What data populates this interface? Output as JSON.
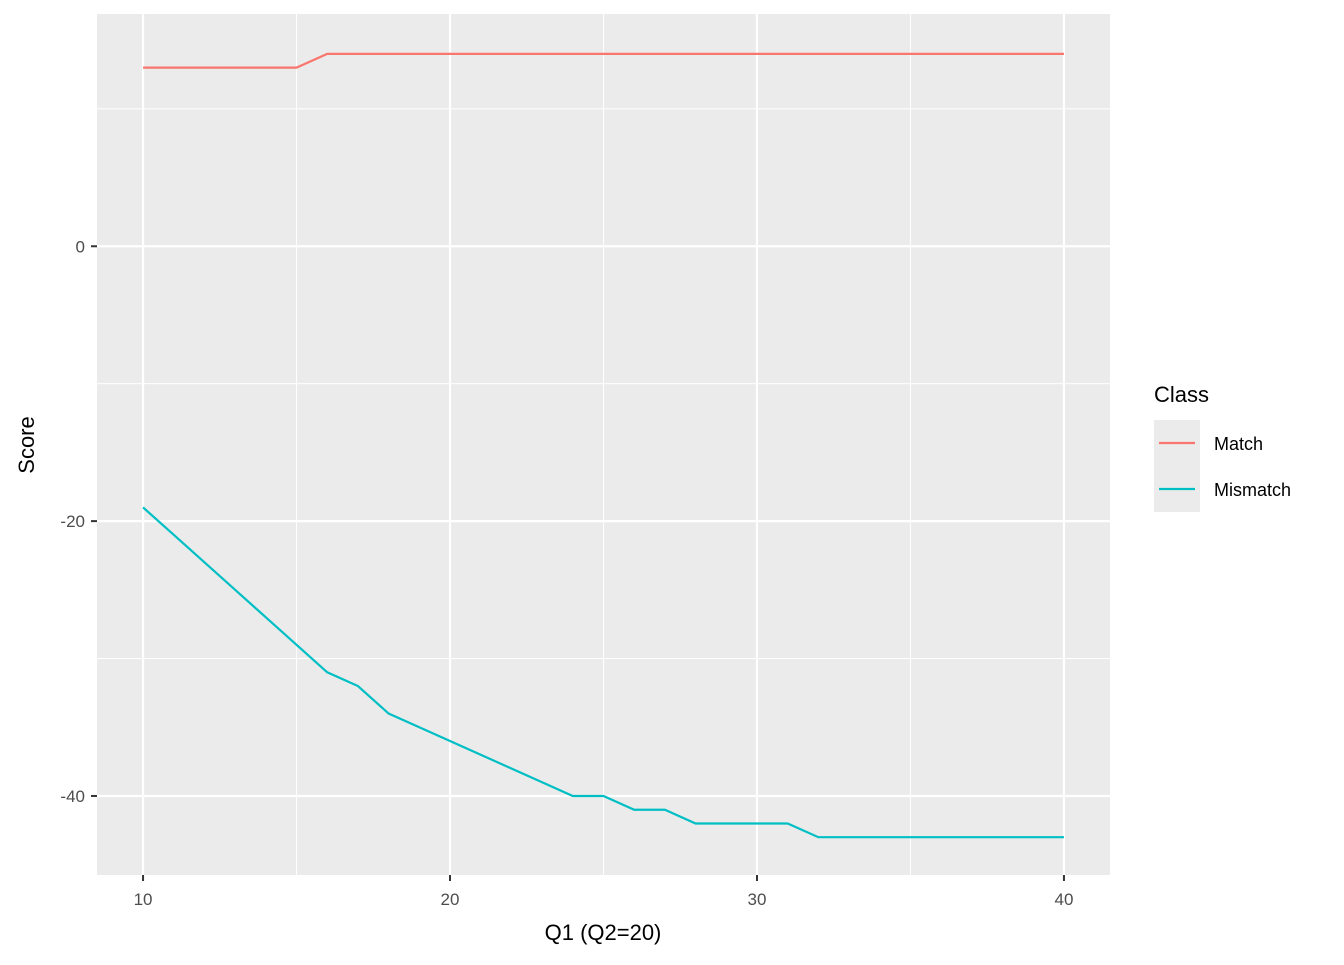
{
  "chart_data": {
    "type": "line",
    "title": "",
    "xlabel": "Q1 (Q2=20)",
    "ylabel": "Score",
    "xlim": [
      8.5,
      41.5
    ],
    "ylim": [
      -45.75,
      16.9
    ],
    "x_ticks": [
      10,
      20,
      30,
      40
    ],
    "y_ticks": [
      0,
      -20,
      -40
    ],
    "grid": true,
    "legend": {
      "title": "Class",
      "position": "right"
    },
    "x": [
      10,
      11,
      12,
      13,
      14,
      15,
      16,
      17,
      18,
      19,
      20,
      21,
      22,
      23,
      24,
      25,
      26,
      27,
      28,
      29,
      30,
      31,
      32,
      33,
      34,
      35,
      36,
      37,
      38,
      39,
      40
    ],
    "series": [
      {
        "name": "Match",
        "color": "#F8766D",
        "values": [
          13,
          13,
          13,
          13,
          13,
          13,
          14,
          14,
          14,
          14,
          14,
          14,
          14,
          14,
          14,
          14,
          14,
          14,
          14,
          14,
          14,
          14,
          14,
          14,
          14,
          14,
          14,
          14,
          14,
          14,
          14
        ]
      },
      {
        "name": "Mismatch",
        "color": "#00BFC4",
        "values": [
          -19,
          -21,
          -23,
          -25,
          -27,
          -29,
          -31,
          -32,
          -34,
          -35,
          -36,
          -37,
          -38,
          -39,
          -40,
          -40,
          -41,
          -41,
          -42,
          -42,
          -42,
          -42,
          -43,
          -43,
          -43,
          -43,
          -43,
          -43,
          -43,
          -43,
          -43
        ]
      }
    ]
  }
}
